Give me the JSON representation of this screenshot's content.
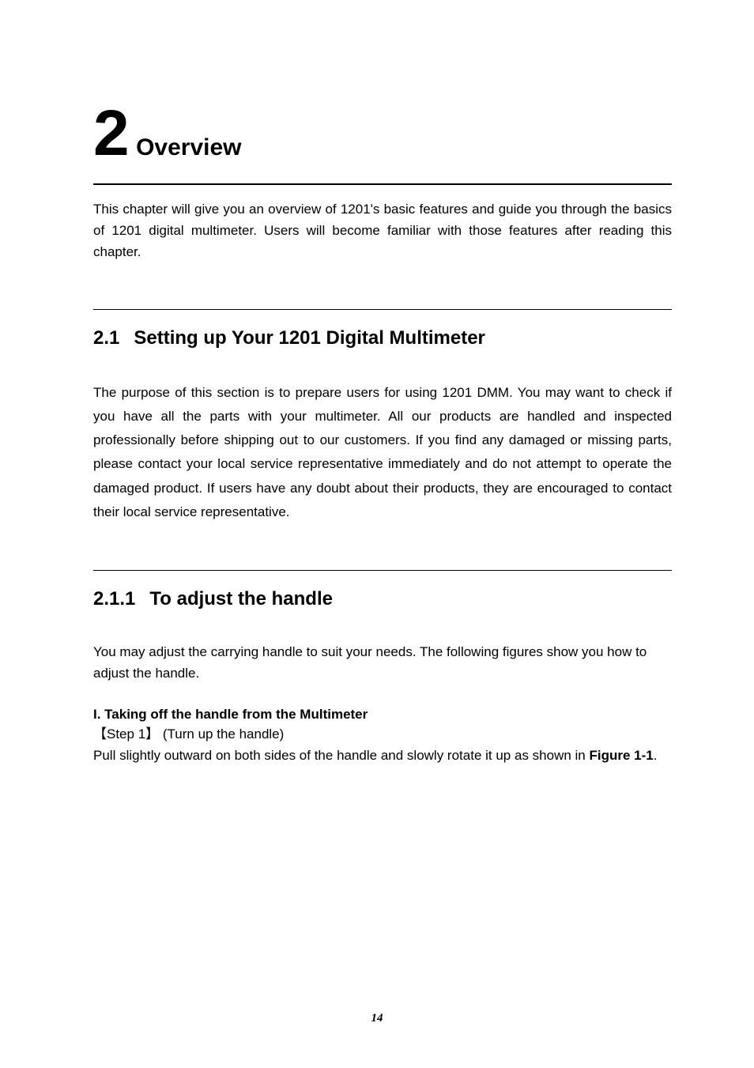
{
  "colors": {
    "text": "#000000",
    "bg": "#ffffff"
  },
  "typography": {
    "body_fontsize_pt": 13,
    "h1_number_fontsize_pt": 62,
    "h1_word_fontsize_pt": 23,
    "h2_fontsize_pt": 18,
    "line_height_body": 1.58
  },
  "chapter": {
    "number": "2",
    "title": "Overview"
  },
  "intro": "This chapter will give you an overview of 1201's basic features and guide you through the basics of 1201 digital multimeter. Users will become familiar with those features after reading this chapter.",
  "section_2_1": {
    "number": "2.1",
    "title": "Setting up Your 1201 Digital Multimeter",
    "body": "The purpose of this section is to prepare users for using 1201 DMM. You may want to check if you have all the parts with your multimeter. All our products are handled and inspected professionally before shipping out to our customers. If you find any damaged or missing parts, please contact your local service representative immediately and do not attempt to operate the damaged product. If users have any doubt about their products, they are encouraged to contact their local service representative."
  },
  "section_2_1_1": {
    "number": "2.1.1",
    "title": "To adjust the handle",
    "body": "You may adjust the carrying handle to suit your needs. The following figures show you how to adjust the handle.",
    "sub_heading": "I. Taking off the handle from the Multimeter",
    "step_label_open": "【",
    "step_label_text": "Step 1",
    "step_label_close": "】",
    "step_caption": "(Turn up the handle)",
    "step_body_pre": "Pull slightly outward on both sides of the handle and slowly rotate it up as shown in ",
    "figure_ref": "Figure 1-1",
    "step_body_post": "."
  },
  "page_number": "14"
}
